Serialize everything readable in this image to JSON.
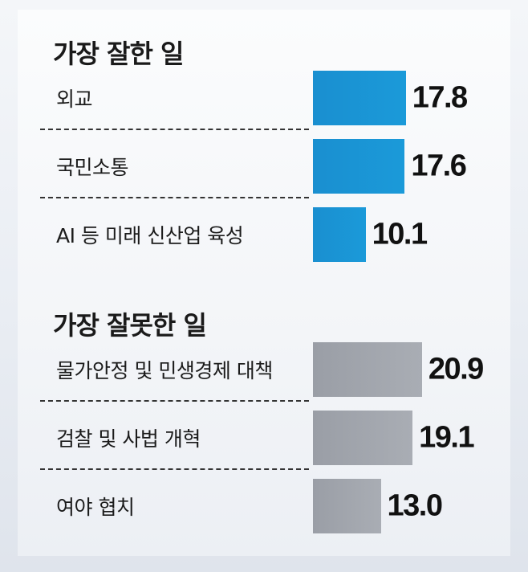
{
  "chart_data": [
    {
      "type": "bar",
      "orientation": "horizontal",
      "title": "가장 잘한 일",
      "categories": [
        "외교",
        "국민소통",
        "AI 등 미래 신산업 육성"
      ],
      "values": [
        17.8,
        17.6,
        10.1
      ],
      "value_labels": [
        "17.8",
        "17.6",
        "10.1"
      ],
      "color": "#1b9ad9"
    },
    {
      "type": "bar",
      "orientation": "horizontal",
      "title": "가장 잘못한 일",
      "categories": [
        "물가안정 및 민생경제 대책",
        "검찰 및 사법 개혁",
        "여야 협치"
      ],
      "values": [
        20.9,
        19.1,
        13.0
      ],
      "value_labels": [
        "20.9",
        "19.1",
        "13.0"
      ],
      "color": "#a4a8af"
    }
  ]
}
